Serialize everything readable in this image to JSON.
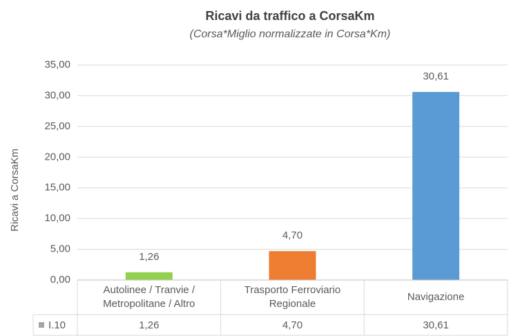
{
  "chart_data": {
    "type": "bar",
    "title": "Ricavi da traffico a CorsaKm",
    "subtitle": "(Corsa*Miglio normalizzate in Corsa*Km)",
    "y_label": "Ricavi a CorsaKm",
    "categories": [
      "Autolinee / Tranvie / Metropolitane / Altro",
      "Trasporto Ferroviario Regionale",
      "Navigazione"
    ],
    "series": [
      {
        "name": "I.10",
        "color": "#a5a5a5",
        "colors": [
          "#92d050",
          "#ed7d31",
          "#5b9bd5"
        ],
        "values": [
          1.26,
          4.7,
          30.61
        ],
        "value_labels": [
          "1,26",
          "4,70",
          "30,61"
        ]
      }
    ],
    "ylim": [
      0,
      35
    ],
    "yticks": [
      {
        "value": 0,
        "label": "0,00"
      },
      {
        "value": 5,
        "label": "5,00"
      },
      {
        "value": 10,
        "label": "10,00"
      },
      {
        "value": 15,
        "label": "15,00"
      },
      {
        "value": 20,
        "label": "20,00"
      },
      {
        "value": 25,
        "label": "25,00"
      },
      {
        "value": 30,
        "label": "30,00"
      },
      {
        "value": 35,
        "label": "35,00"
      }
    ],
    "grid": true
  }
}
